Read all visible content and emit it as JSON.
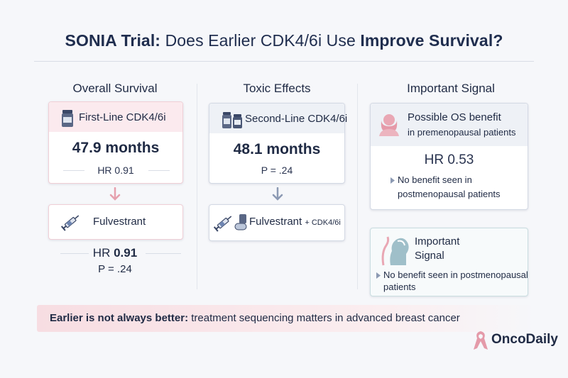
{
  "title": {
    "part1": "SONIA Trial:",
    "part2": "Does Earlier CDK4/6i Use",
    "part3": "Improve Survival?"
  },
  "columns": {
    "overall": {
      "heading": "Overall Survival",
      "top_card": {
        "label": "First-Line CDK4/6i",
        "value": "47.9 months",
        "hr": "HR 0.91"
      },
      "bottom_card": {
        "label": "Fulvestrant"
      },
      "footer": {
        "hr_prefix": "HR",
        "hr_value": "0.91",
        "p": "P = .24"
      }
    },
    "toxic": {
      "heading": "Toxic Effects",
      "top_card": {
        "label": "Second-Line CDK4/6i",
        "value": "48.1 months",
        "p": "P = .24"
      },
      "bottom_card": {
        "label": "Fulvestrant",
        "label_small": "+ CDK4/6i"
      }
    },
    "signal": {
      "heading": "Important Signal",
      "top_card": {
        "title": "Possible OS benefit",
        "subtitle": "in premenopausal patients",
        "hr": "HR 0.53",
        "note_line1": "No benefit seen in",
        "note_line2": "postmenopausal patients"
      },
      "bottom_card": {
        "title_line1": "Important",
        "title_line2": "Signal",
        "note_line1": "No benefit seen in postmenopausal",
        "note_line2": "patients"
      }
    }
  },
  "banner": {
    "bold": "Earlier is not always better:",
    "rest": "treatment sequencing matters in advanced breast cancer"
  },
  "brand": {
    "name": "OncoDaily"
  },
  "colors": {
    "navy": "#1f2a44",
    "pink": "#e9a7b4",
    "arrow_pink": "#e6a0ad",
    "arrow_blue": "#8c9ab3"
  }
}
